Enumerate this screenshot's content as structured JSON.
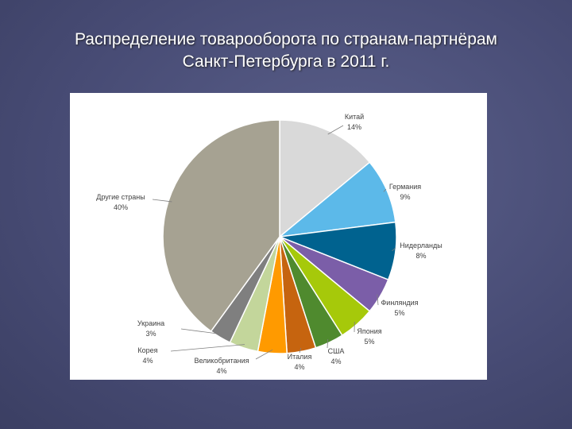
{
  "slide": {
    "title_lines": [
      "Распределение товарооборота по странам-партнёрам",
      "Санкт-Петербурга в 2011 г."
    ]
  },
  "chart_data": {
    "type": "pie",
    "categories": [
      "Китай",
      "Германия",
      "Нидерланды",
      "Финляндия",
      "Япония",
      "США",
      "Италия",
      "Великобритания",
      "Корея",
      "Украина",
      "Другие страны"
    ],
    "values": [
      14,
      9,
      8,
      5,
      5,
      4,
      4,
      4,
      4,
      3,
      40
    ],
    "value_labels": [
      "14%",
      "9%",
      "8%",
      "5%",
      "5%",
      "4%",
      "4%",
      "4%",
      "4%",
      "3%",
      "40%"
    ],
    "colors": [
      "#d9d9d9",
      "#5cb9e9",
      "#00628f",
      "#7b5ea8",
      "#a6c90a",
      "#4f8a2e",
      "#c6640f",
      "#ff9a00",
      "#c3d69b",
      "#7f7f7f",
      "#a6a292"
    ]
  }
}
